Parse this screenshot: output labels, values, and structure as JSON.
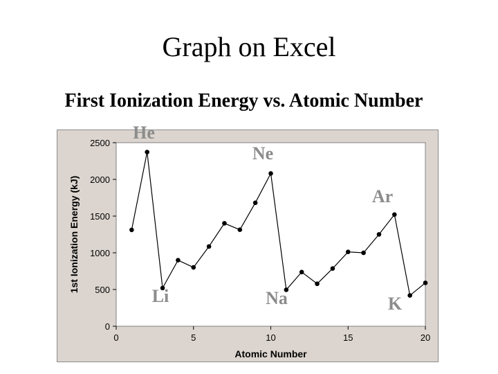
{
  "slide": {
    "title": "Graph on Excel"
  },
  "chart_data": {
    "type": "line",
    "title": "First Ionization Energy vs. Atomic Number",
    "xlabel": "Atomic Number",
    "ylabel": "1st Ionization Energy (kJ)",
    "xlim": [
      0,
      20
    ],
    "ylim": [
      0,
      2500
    ],
    "xticks": [
      0,
      5,
      10,
      15,
      20
    ],
    "yticks": [
      0,
      500,
      1000,
      1500,
      2000,
      2500
    ],
    "grid": false,
    "legend": "none",
    "colors": {
      "line": "#000000",
      "plot_background": "#ffffff",
      "frame_background": "#dcd5cf",
      "annotation": "#8c8c8c"
    },
    "series": [
      {
        "x": [
          1,
          2,
          3,
          4,
          5,
          6,
          7,
          8,
          9,
          10,
          11,
          12,
          13,
          14,
          15,
          16,
          17,
          18,
          19,
          20
        ],
        "y": [
          1312,
          2372,
          520,
          899,
          801,
          1086,
          1402,
          1314,
          1681,
          2081,
          496,
          738,
          578,
          786,
          1012,
          1000,
          1251,
          1521,
          419,
          590
        ]
      }
    ],
    "annotations": [
      {
        "text": "He",
        "x": 2
      },
      {
        "text": "Li",
        "x": 3
      },
      {
        "text": "Ne",
        "x": 10
      },
      {
        "text": "Na",
        "x": 11
      },
      {
        "text": "Ar",
        "x": 18
      },
      {
        "text": "K",
        "x": 19
      }
    ]
  }
}
